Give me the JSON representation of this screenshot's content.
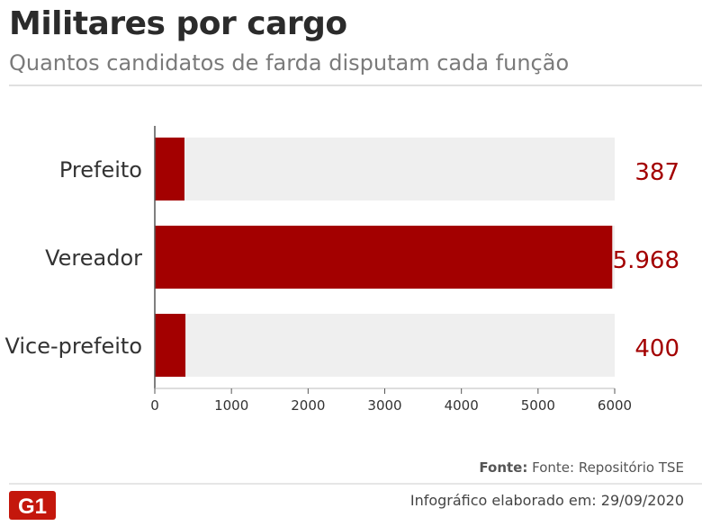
{
  "header": {
    "title": "Militares por cargo",
    "subtitle": "Quantos candidatos de farda disputam cada função"
  },
  "footer": {
    "source_label": "Fonte:",
    "source_text": "Fonte: Repositório TSE",
    "date_text": "Infográfico elaborado em: 29/09/2020",
    "logo_text": "G1"
  },
  "colors": {
    "bar": "#a30000",
    "track": "#efefef",
    "value_text": "#a30000",
    "label_text": "#333333",
    "axis": "#555555"
  },
  "chart_data": {
    "type": "bar",
    "orientation": "horizontal",
    "categories": [
      "Prefeito",
      "Vereador",
      "Vice-prefeito"
    ],
    "values": [
      387,
      5968,
      400
    ],
    "value_labels": [
      "387",
      "5.968",
      "400"
    ],
    "xlim": [
      0,
      6000
    ],
    "xticks": [
      0,
      1000,
      2000,
      3000,
      4000,
      5000,
      6000
    ],
    "xtick_labels": [
      "0",
      "1000",
      "2000",
      "3000",
      "4000",
      "5000",
      "6000"
    ],
    "grid": false,
    "legend": "none"
  }
}
